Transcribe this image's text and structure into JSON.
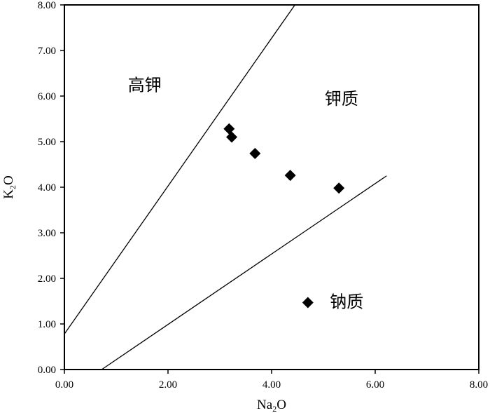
{
  "chart_data": {
    "type": "scatter",
    "title": "",
    "xlabel": "Na₂O",
    "ylabel": "K₂O",
    "xlabel_parts": {
      "base": "Na",
      "sub": "2",
      "tail": "O"
    },
    "ylabel_parts": {
      "base": "K",
      "sub": "2",
      "tail": "O"
    },
    "xlim": [
      0,
      8
    ],
    "ylim": [
      0,
      8
    ],
    "x_ticks": [
      "0.00",
      "2.00",
      "4.00",
      "6.00",
      "8.00"
    ],
    "y_ticks": [
      "0.00",
      "1.00",
      "2.00",
      "3.00",
      "4.00",
      "5.00",
      "6.00",
      "7.00",
      "8.00"
    ],
    "grid": false,
    "legend": "none",
    "marker": "diamond",
    "marker_color": "#000000",
    "points": [
      {
        "x": 3.18,
        "y": 5.28
      },
      {
        "x": 3.23,
        "y": 5.1
      },
      {
        "x": 3.68,
        "y": 4.74
      },
      {
        "x": 4.36,
        "y": 4.26
      },
      {
        "x": 5.3,
        "y": 3.98
      },
      {
        "x": 4.7,
        "y": 1.47
      }
    ],
    "boundary_lines": [
      {
        "from": {
          "x": 0.0,
          "y": 0.78
        },
        "to": {
          "x": 4.45,
          "y": 8.0
        }
      },
      {
        "from": {
          "x": 0.72,
          "y": 0.0
        },
        "to": {
          "x": 6.22,
          "y": 4.25
        }
      }
    ],
    "region_labels": [
      {
        "text": "高钾",
        "x": 1.55,
        "y": 6.2
      },
      {
        "text": "钾质",
        "x": 5.35,
        "y": 5.9
      },
      {
        "text": "钠质",
        "x": 5.45,
        "y": 1.45
      }
    ]
  }
}
